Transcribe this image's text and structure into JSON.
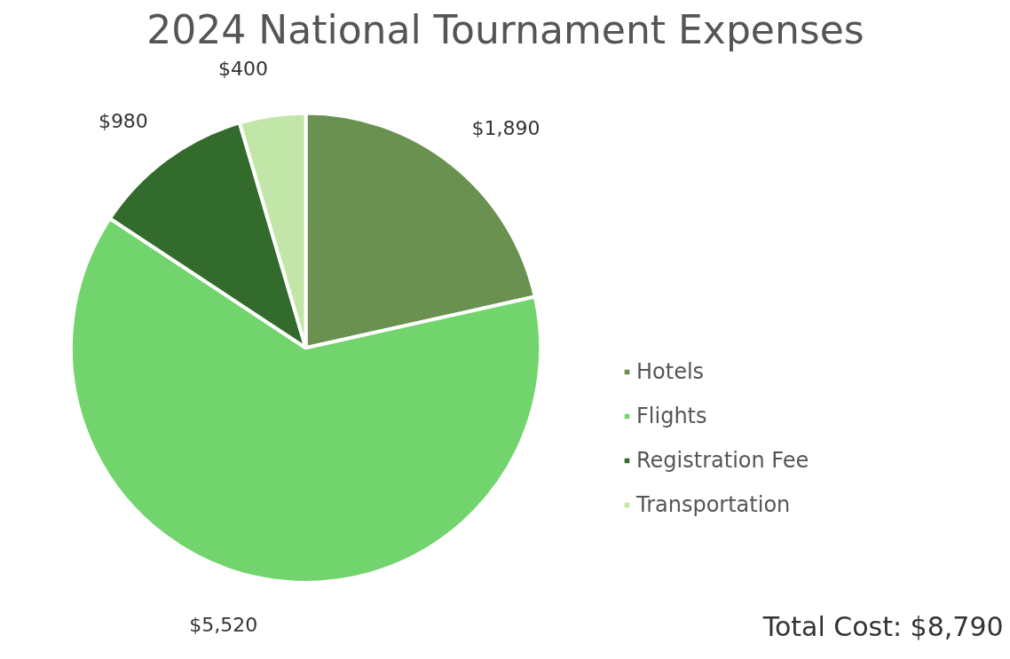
{
  "chart_data": {
    "type": "pie",
    "title": "2024 National Tournament Expenses",
    "categories": [
      "Hotels",
      "Flights",
      "Registration Fee",
      "Transportation"
    ],
    "values": [
      1890,
      5520,
      980,
      400
    ],
    "colors": [
      "#6a9150",
      "#72d46c",
      "#336b2d",
      "#c2e6a8"
    ],
    "value_labels": [
      "$1,890",
      "$5,520",
      "$980",
      "$400"
    ],
    "annotations": [
      "Total Cost: $8,790"
    ],
    "legend": "right"
  }
}
